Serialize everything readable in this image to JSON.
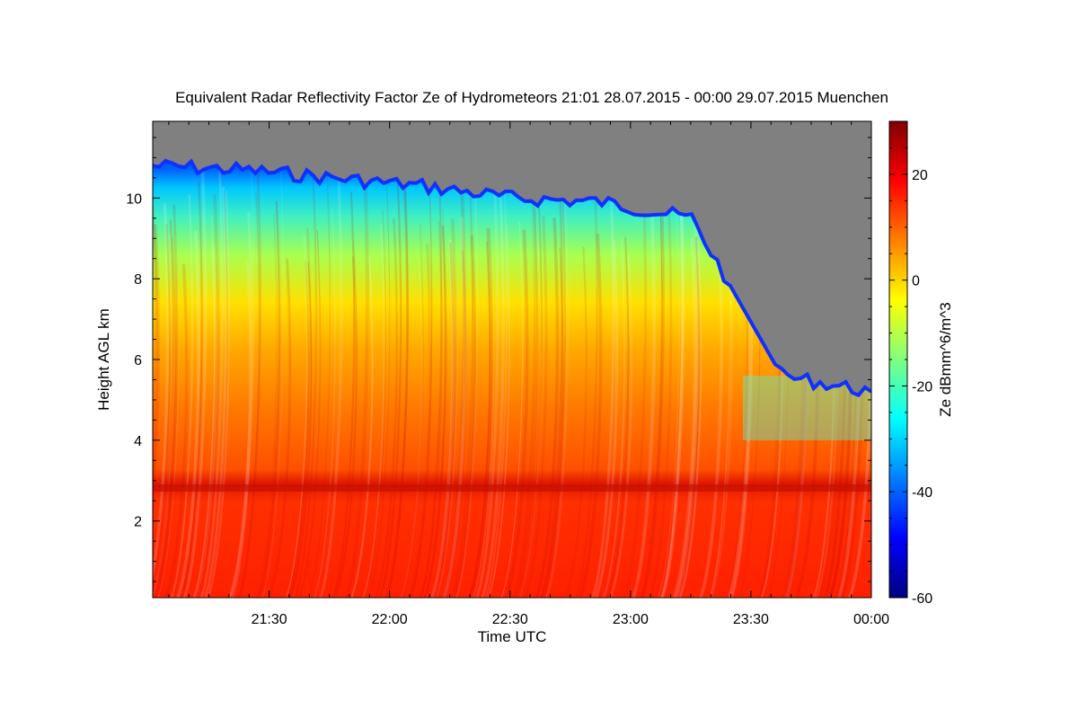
{
  "chart_data": {
    "type": "heatmap",
    "title": "Equivalent Radar Reflectivity Factor Ze of Hydrometeors   21:01 28.07.2015 - 00:00 29.07.2015 Muenchen",
    "xlabel": "Time UTC",
    "ylabel": "Height AGL km",
    "x_ticks": [
      "21:30",
      "22:00",
      "22:30",
      "23:00",
      "23:30",
      "00:00"
    ],
    "y_ticks": [
      "2",
      "4",
      "6",
      "8",
      "10"
    ],
    "xlim": [
      "21:01",
      "00:00"
    ],
    "ylim": [
      0.1,
      11.9
    ],
    "colorbar": {
      "label": "Ze dBmm^6/m^3",
      "range": [
        -60,
        30
      ],
      "ticks": [
        "20",
        "0",
        "-20",
        "-40",
        "-60"
      ],
      "colors": [
        "#00007f",
        "#0000ff",
        "#007fff",
        "#00ffff",
        "#7fff7f",
        "#ffff00",
        "#ff7f00",
        "#ff0000",
        "#7f0000"
      ]
    },
    "no_echo_color": "#808080",
    "features": {
      "cloud_top_km_approx": [
        10.8,
        10.7,
        10.5,
        10.3,
        10.0,
        9.9,
        9.5,
        5.6,
        5.2
      ],
      "melting_layer_km": 2.95
    }
  }
}
